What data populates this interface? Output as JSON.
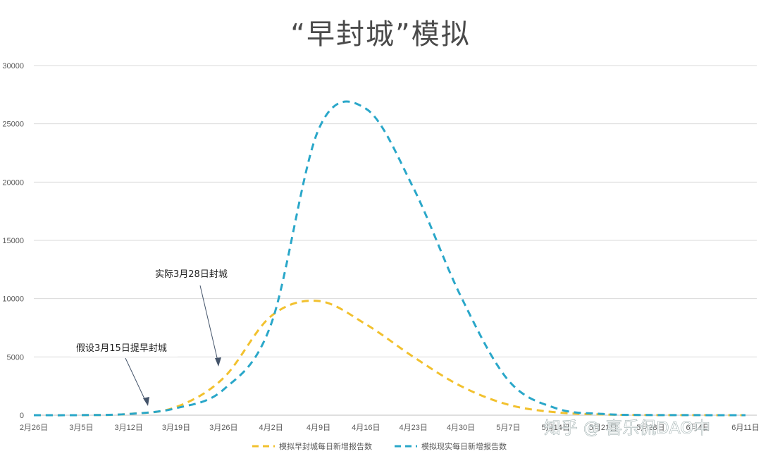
{
  "chart_data": {
    "type": "line",
    "title": "“早封城”模拟",
    "x": [
      "2月26日",
      "3月5日",
      "3月12日",
      "3月19日",
      "3月26日",
      "4月2日",
      "4月9日",
      "4月16日",
      "4月23日",
      "4月30日",
      "5月7日",
      "5月14日",
      "5月21日",
      "5月28日",
      "6月4日",
      "6月11日"
    ],
    "ylim": [
      0,
      30000
    ],
    "yticks": [
      0,
      5000,
      10000,
      15000,
      20000,
      25000,
      30000
    ],
    "grid": true,
    "legend_position": "bottom",
    "series": [
      {
        "name": "模拟早封城每日新增报告数",
        "color": "#F2C12E",
        "values": [
          0,
          5,
          100,
          700,
          3200,
          8500,
          9800,
          7800,
          5000,
          2500,
          900,
          250,
          60,
          15,
          5,
          2
        ]
      },
      {
        "name": "模拟现实每日新增报告数",
        "color": "#2AA7C9",
        "values": [
          0,
          5,
          100,
          600,
          2200,
          7800,
          24500,
          26300,
          19500,
          10200,
          3000,
          600,
          100,
          15,
          5,
          2
        ]
      }
    ],
    "annotations": [
      {
        "text": "实际3月28日封城",
        "x_value": "3月28日"
      },
      {
        "text": "假设3月15日提早封城",
        "x_value": "3月15日"
      }
    ]
  },
  "watermark": "知乎 @ 喜乐侃DAO中"
}
